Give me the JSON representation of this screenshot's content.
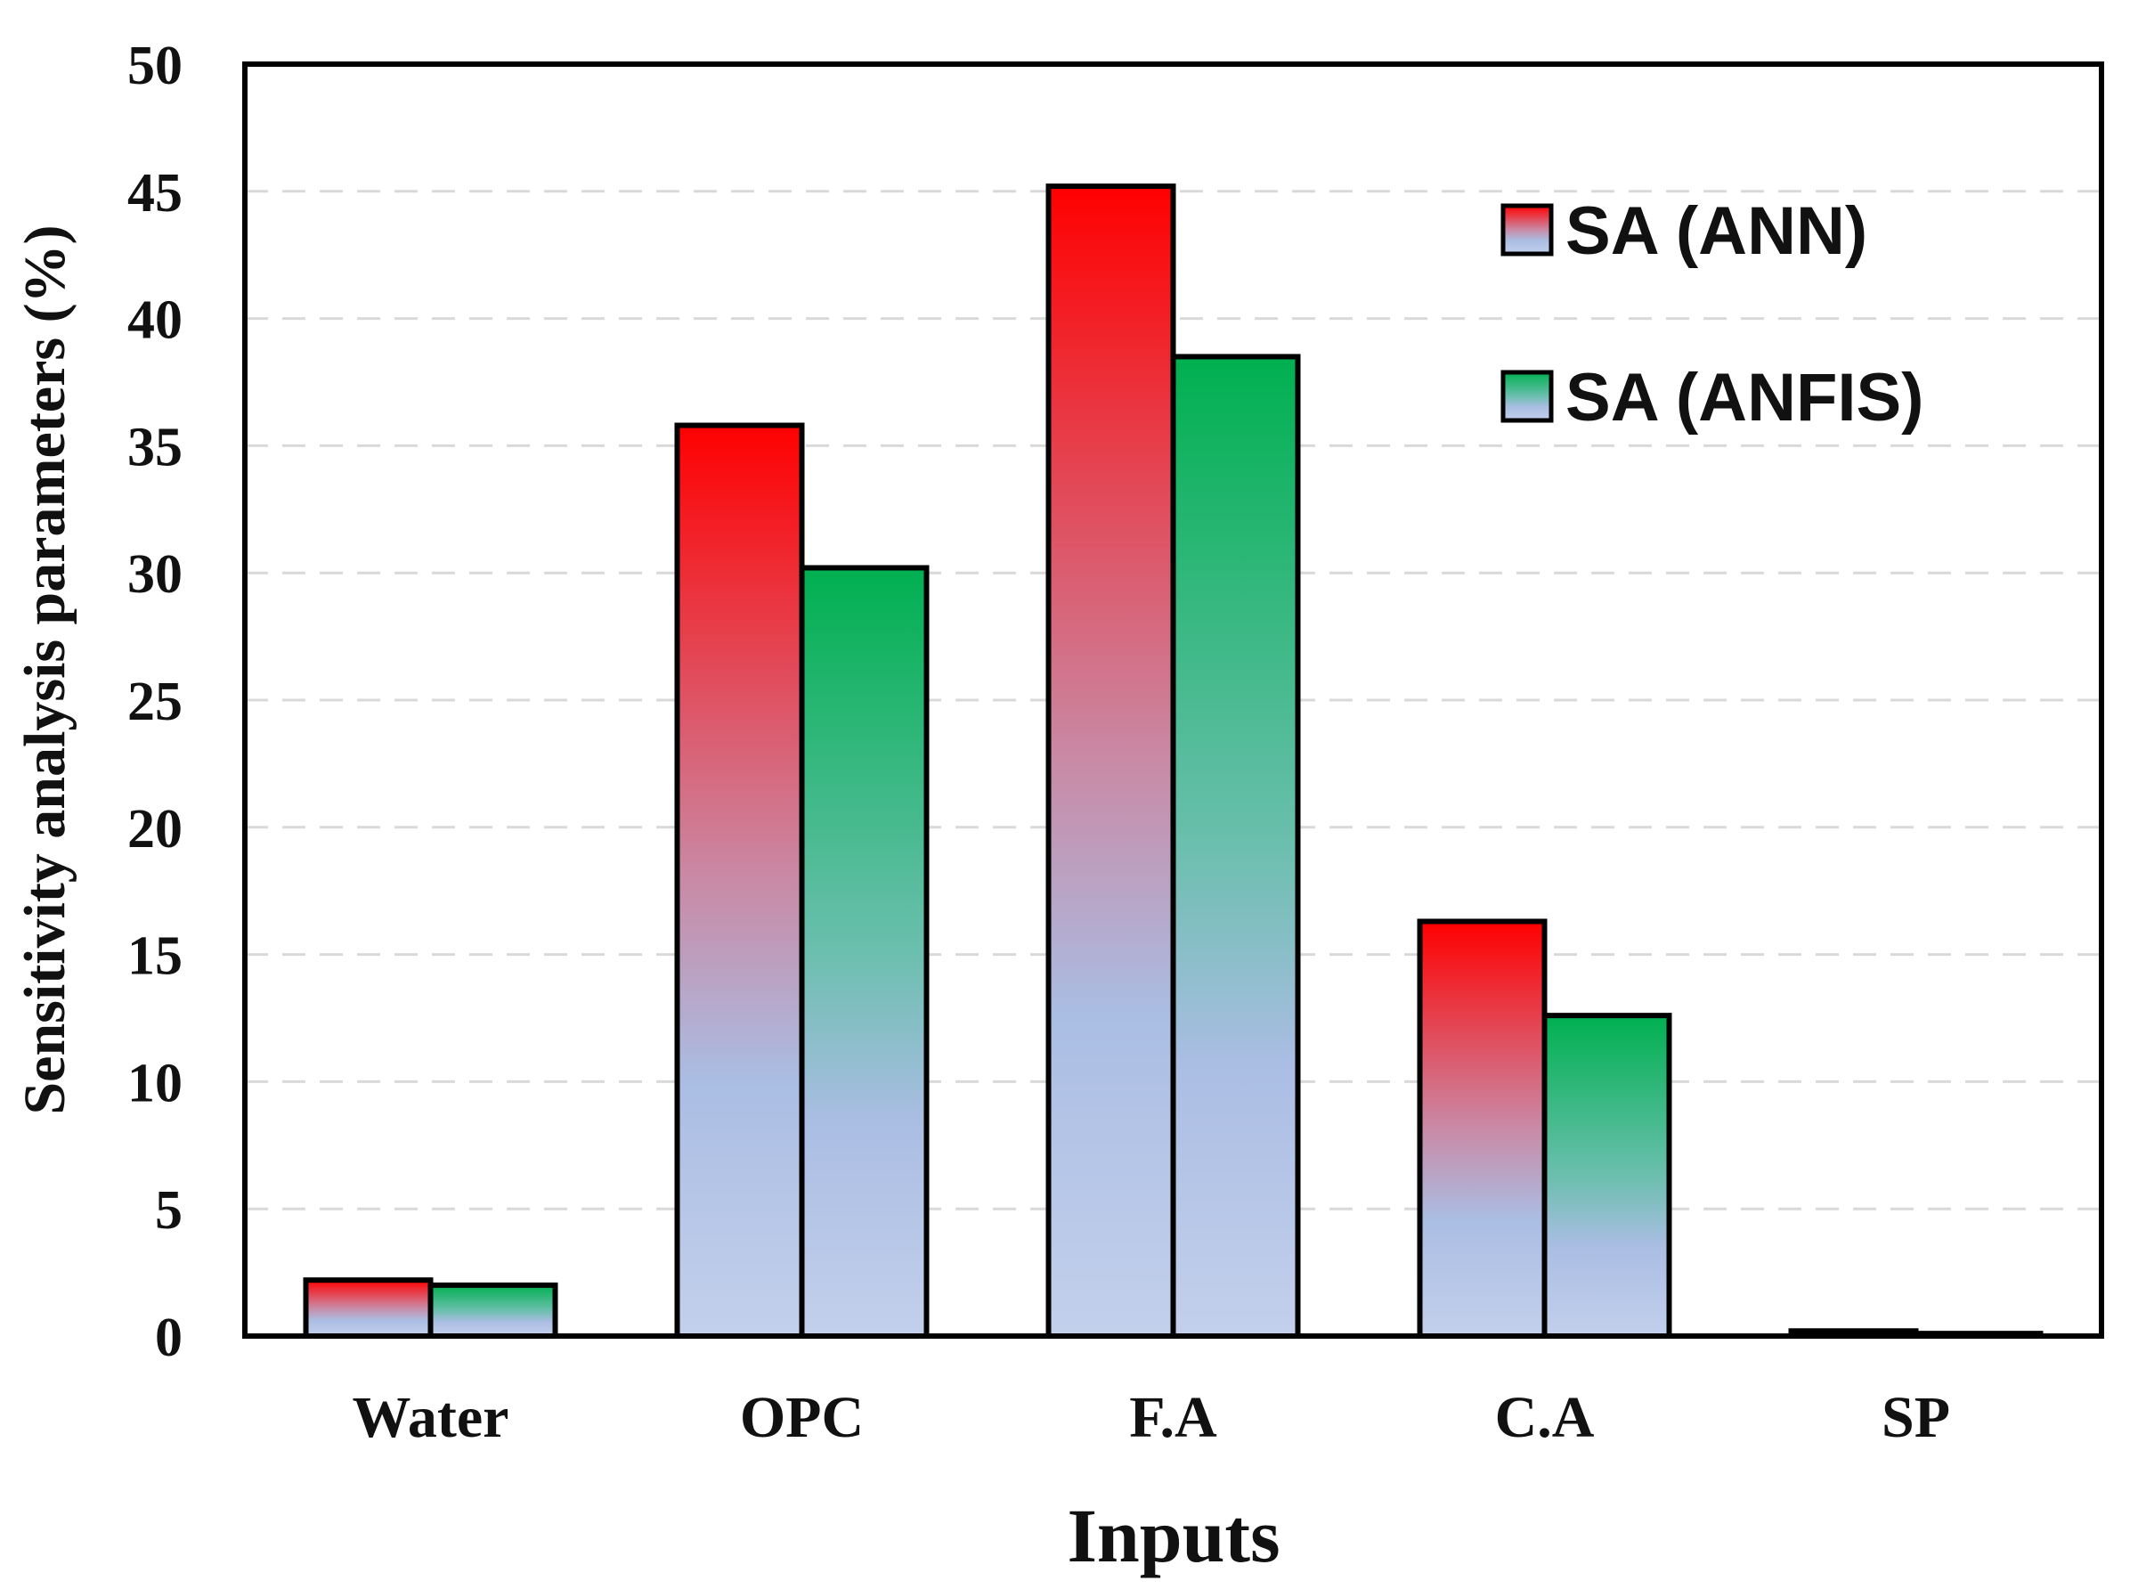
{
  "chart_data": {
    "type": "bar",
    "title": "",
    "xlabel": "Inputs",
    "ylabel": "Sensitivity analysis parameters (%)",
    "categories": [
      "Water",
      "OPC",
      "F.A",
      "C.A",
      "SP"
    ],
    "series": [
      {
        "name": "SA (ANN)",
        "values": [
          2.2,
          35.8,
          45.2,
          16.3,
          0.2
        ],
        "color_top": "#ff0000",
        "color_bottom": "#aabde3"
      },
      {
        "name": "SA (ANFIS)",
        "values": [
          2.0,
          30.2,
          38.5,
          12.6,
          0.1
        ],
        "color_top": "#00b050",
        "color_bottom": "#aabde3"
      }
    ],
    "ylim": [
      0,
      50
    ],
    "yticks": [
      0,
      5,
      10,
      15,
      20,
      25,
      30,
      35,
      40,
      45,
      50
    ],
    "grid": true,
    "legend": "top-right"
  }
}
